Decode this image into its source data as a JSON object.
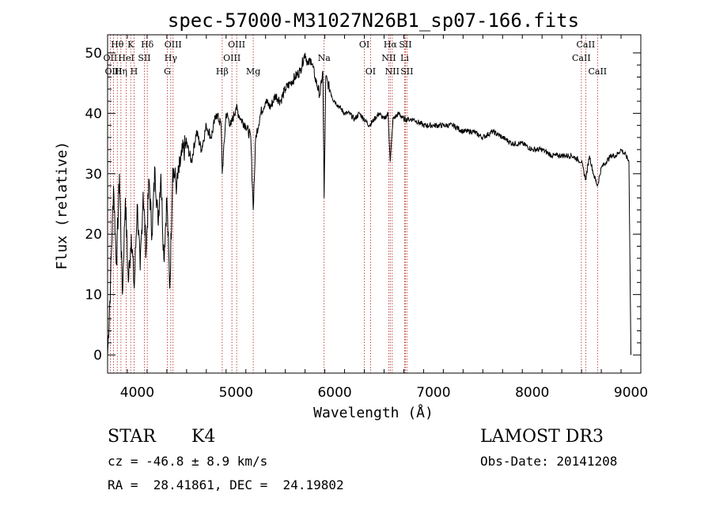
{
  "chart_data": {
    "type": "line",
    "title": "spec-57000-M31027N26B1_sp07-166.fits",
    "xlabel": "Wavelength (Å)",
    "ylabel": "Flux (relative)",
    "xlim": [
      3700,
      9100
    ],
    "ylim": [
      -3,
      53
    ],
    "x_ticks": [
      4000,
      5000,
      6000,
      7000,
      8000,
      9000
    ],
    "y_ticks": [
      0,
      10,
      20,
      30,
      40,
      50
    ],
    "grid": false,
    "series": [
      {
        "name": "flux",
        "color": "#000000",
        "x": [
          3700,
          3730,
          3760,
          3790,
          3820,
          3850,
          3880,
          3910,
          3940,
          3970,
          4000,
          4030,
          4060,
          4090,
          4120,
          4150,
          4180,
          4210,
          4240,
          4270,
          4300,
          4330,
          4360,
          4400,
          4450,
          4500,
          4550,
          4600,
          4650,
          4700,
          4750,
          4800,
          4850,
          4861,
          4900,
          4950,
          5000,
          5050,
          5100,
          5150,
          5175,
          5200,
          5250,
          5300,
          5350,
          5400,
          5450,
          5500,
          5550,
          5600,
          5650,
          5700,
          5730,
          5760,
          5800,
          5850,
          5880,
          5893,
          5910,
          5950,
          6000,
          6050,
          6100,
          6150,
          6200,
          6250,
          6300,
          6350,
          6400,
          6450,
          6500,
          6540,
          6563,
          6590,
          6650,
          6700,
          6750,
          6800,
          6900,
          7000,
          7100,
          7200,
          7300,
          7400,
          7500,
          7600,
          7700,
          7800,
          7900,
          8000,
          8100,
          8200,
          8300,
          8400,
          8498,
          8542,
          8580,
          8620,
          8662,
          8700,
          8750,
          8800,
          8850,
          8900,
          8950,
          8980,
          9000
        ],
        "y": [
          0,
          12,
          28,
          15,
          30,
          10,
          26,
          12,
          20,
          11,
          25,
          14,
          27,
          17,
          29,
          20,
          31,
          22,
          30,
          16,
          26,
          11,
          31,
          28,
          33,
          35,
          32,
          37,
          34,
          38,
          36,
          40,
          38,
          30,
          40,
          38,
          41,
          39,
          38,
          36,
          24,
          36,
          40,
          42,
          41,
          43,
          42,
          44,
          45,
          46,
          47,
          50,
          48,
          49,
          46,
          43,
          47,
          26,
          46,
          44,
          42,
          41,
          40,
          40,
          39,
          40,
          39,
          38,
          39,
          40,
          39,
          40,
          32,
          39,
          40,
          39,
          39,
          39,
          38,
          38,
          38,
          38,
          37,
          37,
          36,
          37,
          36,
          35,
          35,
          34,
          34,
          33,
          33,
          33,
          32,
          29,
          33,
          30,
          28,
          31,
          32,
          33,
          33,
          34,
          33,
          32,
          0
        ]
      }
    ],
    "lines": [
      {
        "label": "Hθ",
        "x": 3798,
        "row": 0,
        "ink": "black"
      },
      {
        "label": "OII",
        "x": 3727,
        "row": 1,
        "ink": "black"
      },
      {
        "label": "OIII",
        "x": 3760,
        "row": 2,
        "ink": "black"
      },
      {
        "label": "Hη",
        "x": 3835,
        "row": 2,
        "ink": "black"
      },
      {
        "label": "HeI",
        "x": 3889,
        "row": 1,
        "ink": "black"
      },
      {
        "label": "K",
        "x": 3934,
        "row": 0,
        "ink": "black"
      },
      {
        "label": "H",
        "x": 3968,
        "row": 2,
        "ink": "black"
      },
      {
        "label": "SII",
        "x": 4072,
        "row": 1,
        "ink": "black"
      },
      {
        "label": "Hδ",
        "x": 4102,
        "row": 0,
        "ink": "black"
      },
      {
        "label": "G",
        "x": 4305,
        "row": 2,
        "ink": "black"
      },
      {
        "label": "Hγ",
        "x": 4340,
        "row": 1,
        "ink": "black"
      },
      {
        "label": "OIII",
        "x": 4363,
        "row": 0,
        "ink": "black"
      },
      {
        "label": "Hβ",
        "x": 4861,
        "row": 2,
        "ink": "black"
      },
      {
        "label": "OIII",
        "x": 4959,
        "row": 1,
        "ink": "black"
      },
      {
        "label": "OIII",
        "x": 5007,
        "row": 0,
        "ink": "black"
      },
      {
        "label": "Mg",
        "x": 5175,
        "row": 2,
        "ink": "black"
      },
      {
        "label": "Na",
        "x": 5893,
        "row": 1,
        "ink": "black"
      },
      {
        "label": "OI",
        "x": 6300,
        "row": 0,
        "ink": "black"
      },
      {
        "label": "OI",
        "x": 6363,
        "row": 2,
        "ink": "black"
      },
      {
        "label": "NII",
        "x": 6548,
        "row": 1,
        "ink": "black"
      },
      {
        "label": "Hα",
        "x": 6563,
        "row": 0,
        "ink": "black"
      },
      {
        "label": "NII",
        "x": 6583,
        "row": 2,
        "ink": "black"
      },
      {
        "label": "Li",
        "x": 6708,
        "row": 1,
        "ink": "black"
      },
      {
        "label": "SII",
        "x": 6716,
        "row": 0,
        "ink": "black"
      },
      {
        "label": "SII",
        "x": 6731,
        "row": 2,
        "ink": "black"
      },
      {
        "label": "CaII",
        "x": 8498,
        "row": 1,
        "ink": "black"
      },
      {
        "label": "CaII",
        "x": 8542,
        "row": 0,
        "ink": "black"
      },
      {
        "label": "CaII",
        "x": 8662,
        "row": 2,
        "ink": "black"
      }
    ],
    "line_color": "#b22222"
  },
  "info": {
    "class": "STAR",
    "subclass": "K4",
    "survey": "LAMOST DR3",
    "cz": "cz = -46.8 ± 8.9 km/s",
    "obs_date": "Obs-Date: 20141208",
    "coords": "RA =  28.41861, DEC =  24.19802"
  }
}
